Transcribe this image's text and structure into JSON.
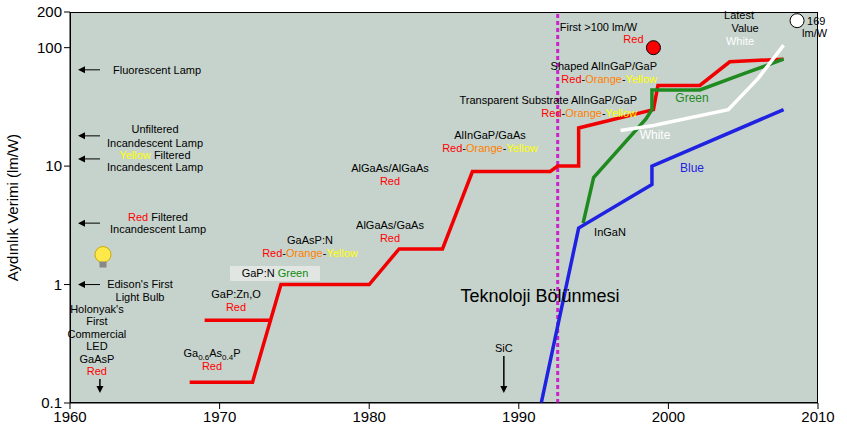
{
  "chart_data": {
    "type": "line",
    "y_label": "Aydınlık Verimi (lm/W)",
    "log": "y",
    "grid": false,
    "xlim": [
      1960,
      2010
    ],
    "xticks": [
      1960,
      1970,
      1980,
      1990,
      2000,
      2010
    ],
    "ylim": [
      0.1,
      200
    ],
    "yticks": [
      0.1,
      1,
      10,
      100,
      200
    ],
    "series": [
      {
        "color": "#f00000",
        "x": [
          1968,
          1972.2,
          1974.1,
          1980,
          1982,
          1984.9,
          1986.9,
          1992.1,
          1992.6,
          1994,
          1994,
          1999,
          1999.3,
          2002.1,
          2004.1,
          2007.7
        ],
        "values": [
          0.15,
          0.15,
          1,
          1,
          2,
          2,
          9,
          9,
          10,
          10,
          21,
          30,
          48,
          48,
          76,
          80
        ]
      },
      {
        "color": "#f00000",
        "x": [
          1969,
          1973.4
        ],
        "values": [
          0.5,
          0.5
        ]
      },
      {
        "name": "Green",
        "color": "#1f8a1f",
        "x": [
          1994.3,
          1995,
          1998.5,
          1998.9,
          1998.9,
          2002.1,
          2005,
          2007.7
        ],
        "values": [
          3.3,
          8,
          25,
          30,
          44,
          44,
          60,
          80
        ]
      },
      {
        "name": "Blue",
        "color": "#1f22e0",
        "x": [
          1991.5,
          1994,
          1998.9,
          1998.9,
          2007.7
        ],
        "values": [
          0.1,
          3,
          7,
          10,
          30
        ]
      },
      {
        "name": "White",
        "color": "#ffffff",
        "x": [
          1996.8,
          1999,
          2004,
          2006,
          2007.7
        ],
        "values": [
          20,
          22,
          30,
          55,
          105
        ]
      }
    ],
    "divider": {
      "x": 1992.6,
      "color": "#cc22cc",
      "label": "Teknoloji Bölünmesi"
    },
    "reference_levels": [
      {
        "value": 65,
        "lines": [
          [
            {
              "text": "Fluorescent Lamp"
            }
          ]
        ]
      },
      {
        "value": 18,
        "lines": [
          [
            {
              "text": "Unfiltered"
            }
          ],
          [
            {
              "text": "Incandescent Lamp"
            }
          ]
        ]
      },
      {
        "value": 11.5,
        "lines": [
          [
            {
              "text": "Yellow",
              "color": "#ffff00"
            },
            {
              "text": " Filtered"
            }
          ],
          [
            {
              "text": "Incandescent Lamp"
            }
          ]
        ]
      },
      {
        "value": 3.3,
        "lines": [
          [
            {
              "text": "Red",
              "color": "#ff0000"
            },
            {
              "text": " Filtered"
            }
          ],
          [
            {
              "text": "Incandescent Lamp"
            }
          ]
        ]
      },
      {
        "value": 1,
        "lines": [
          [
            {
              "text": "Edison's First"
            }
          ],
          [
            {
              "text": "Light Bulb"
            }
          ]
        ]
      }
    ],
    "arrows": [
      {
        "x": 1962,
        "lines": [
          [
            {
              "text": "Holonyak's"
            }
          ],
          [
            {
              "text": "First"
            }
          ],
          [
            {
              "text": "Commercial"
            }
          ],
          [
            {
              "text": "LED"
            }
          ],
          [
            {
              "text": "GaAsP"
            }
          ],
          [
            {
              "text": "Red",
              "color": "#ff0000"
            }
          ]
        ]
      },
      {
        "x": 1989,
        "lines": [
          [
            {
              "text": "SiC"
            }
          ]
        ]
      }
    ],
    "annotations": [
      {
        "lines": [
          [
            {
              "text": "Ga0.6As0.4P"
            }
          ],
          [
            {
              "text": "Red",
              "color": "#ff0000"
            }
          ]
        ]
      },
      {
        "lines": [
          [
            {
              "text": "GaP:Zn,O"
            }
          ],
          [
            {
              "text": "Red",
              "color": "#ff0000"
            }
          ]
        ]
      },
      {
        "lines": [
          [
            {
              "text": "GaP:N "
            },
            {
              "text": "Green",
              "color": "#0a8a0a"
            }
          ]
        ]
      },
      {
        "lines": [
          [
            {
              "text": "GaAsP:N"
            }
          ],
          [
            {
              "text": "Red",
              "color": "#ff0000"
            },
            {
              "text": "-"
            },
            {
              "text": "Orange",
              "color": "#ff8000"
            },
            {
              "text": "-"
            },
            {
              "text": "Yellow",
              "color": "#ffff00"
            }
          ]
        ]
      },
      {
        "lines": [
          [
            {
              "text": "AlGaAs/GaAs"
            }
          ],
          [
            {
              "text": "Red",
              "color": "#ff0000"
            }
          ]
        ]
      },
      {
        "lines": [
          [
            {
              "text": "AlGaAs/AlGaAs"
            }
          ],
          [
            {
              "text": "Red",
              "color": "#ff0000"
            }
          ]
        ]
      },
      {
        "lines": [
          [
            {
              "text": "AlInGaP/GaAs"
            }
          ],
          [
            {
              "text": "Red",
              "color": "#ff0000"
            },
            {
              "text": "-"
            },
            {
              "text": "Orange",
              "color": "#ff8000"
            },
            {
              "text": "-"
            },
            {
              "text": "Yellow",
              "color": "#ffff00"
            }
          ]
        ]
      },
      {
        "lines": [
          [
            {
              "text": "Transparent Substrate AlInGaP/GaP"
            }
          ],
          [
            {
              "text": "Red",
              "color": "#ff0000"
            },
            {
              "text": "-"
            },
            {
              "text": "Orange",
              "color": "#ff8000"
            },
            {
              "text": "-"
            },
            {
              "text": "Yellow",
              "color": "#ffff00"
            }
          ]
        ]
      },
      {
        "lines": [
          [
            {
              "text": "Shaped AlInGaP/GaP"
            }
          ],
          [
            {
              "text": "Red",
              "color": "#ff0000"
            },
            {
              "text": "-"
            },
            {
              "text": "Orange",
              "color": "#ff8000"
            },
            {
              "text": "-"
            },
            {
              "text": "Yellow",
              "color": "#ffff00"
            }
          ]
        ]
      },
      {
        "lines": [
          [
            {
              "text": "InGaN"
            }
          ]
        ]
      }
    ],
    "markers": [
      {
        "x": 1999,
        "y": 100,
        "color": "#ff0000",
        "lines": [
          [
            {
              "text": "First >100 lm/W"
            }
          ],
          [
            {
              "text": "Red",
              "color": "#ff0000"
            }
          ]
        ]
      },
      {
        "x": 2008.6,
        "y": 169,
        "color": "#ffffff",
        "lines": [
          [
            {
              "text": "Latest"
            }
          ],
          [
            {
              "text": "Value"
            }
          ],
          [
            {
              "text": "169"
            }
          ],
          [
            {
              "text": "lm/W"
            }
          ],
          [
            {
              "text": "White",
              "color": "#ffffff"
            }
          ]
        ]
      }
    ]
  }
}
